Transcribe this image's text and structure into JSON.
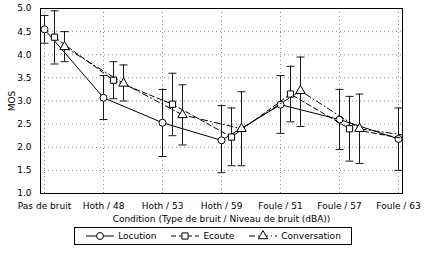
{
  "chart_data": {
    "type": "line",
    "x_label": "Condition (Type de bruit / Niveau de bruit (dBA))",
    "y_label": "MOS",
    "categories": [
      "Pas de bruit",
      "Hoth / 48",
      "Hoth / 53",
      "Hoth / 59",
      "Foule / 51",
      "Foule / 57",
      "Foule / 63"
    ],
    "ylim": [
      1,
      5
    ],
    "yticks": [
      1,
      1.5,
      2,
      2.5,
      3,
      3.5,
      4,
      4.5,
      5
    ],
    "grid": true,
    "legend": "bottom",
    "series": [
      {
        "name": "Locution",
        "color": "#000000",
        "marker": "circle",
        "line_style": "solid",
        "values": [
          4.55,
          3.07,
          2.53,
          2.15,
          2.92,
          2.6,
          2.18
        ],
        "lower": [
          4.25,
          2.6,
          1.8,
          1.45,
          2.3,
          1.95,
          1.5
        ],
        "upper": [
          4.85,
          3.55,
          3.25,
          2.9,
          3.55,
          3.25,
          2.85
        ]
      },
      {
        "name": "Ecoute",
        "color": "#000000",
        "marker": "square",
        "line_style": "dashed",
        "values": [
          4.38,
          3.45,
          2.93,
          2.22,
          3.15,
          2.4,
          2.17
        ],
        "lower": [
          3.8,
          3.05,
          2.25,
          1.6,
          2.55,
          1.7,
          1.45
        ],
        "upper": [
          4.95,
          3.85,
          3.6,
          2.85,
          3.75,
          3.1,
          2.95
        ]
      },
      {
        "name": "Conversation",
        "color": "#000000",
        "marker": "triangle",
        "line_style": "dashdot",
        "values": [
          4.17,
          3.38,
          2.7,
          2.4,
          3.22,
          2.4,
          2.22
        ],
        "lower": [
          3.85,
          3.0,
          2.05,
          1.6,
          2.45,
          1.65,
          1.4
        ],
        "upper": [
          4.5,
          3.78,
          3.35,
          3.2,
          3.95,
          3.15,
          3.0
        ]
      }
    ]
  }
}
